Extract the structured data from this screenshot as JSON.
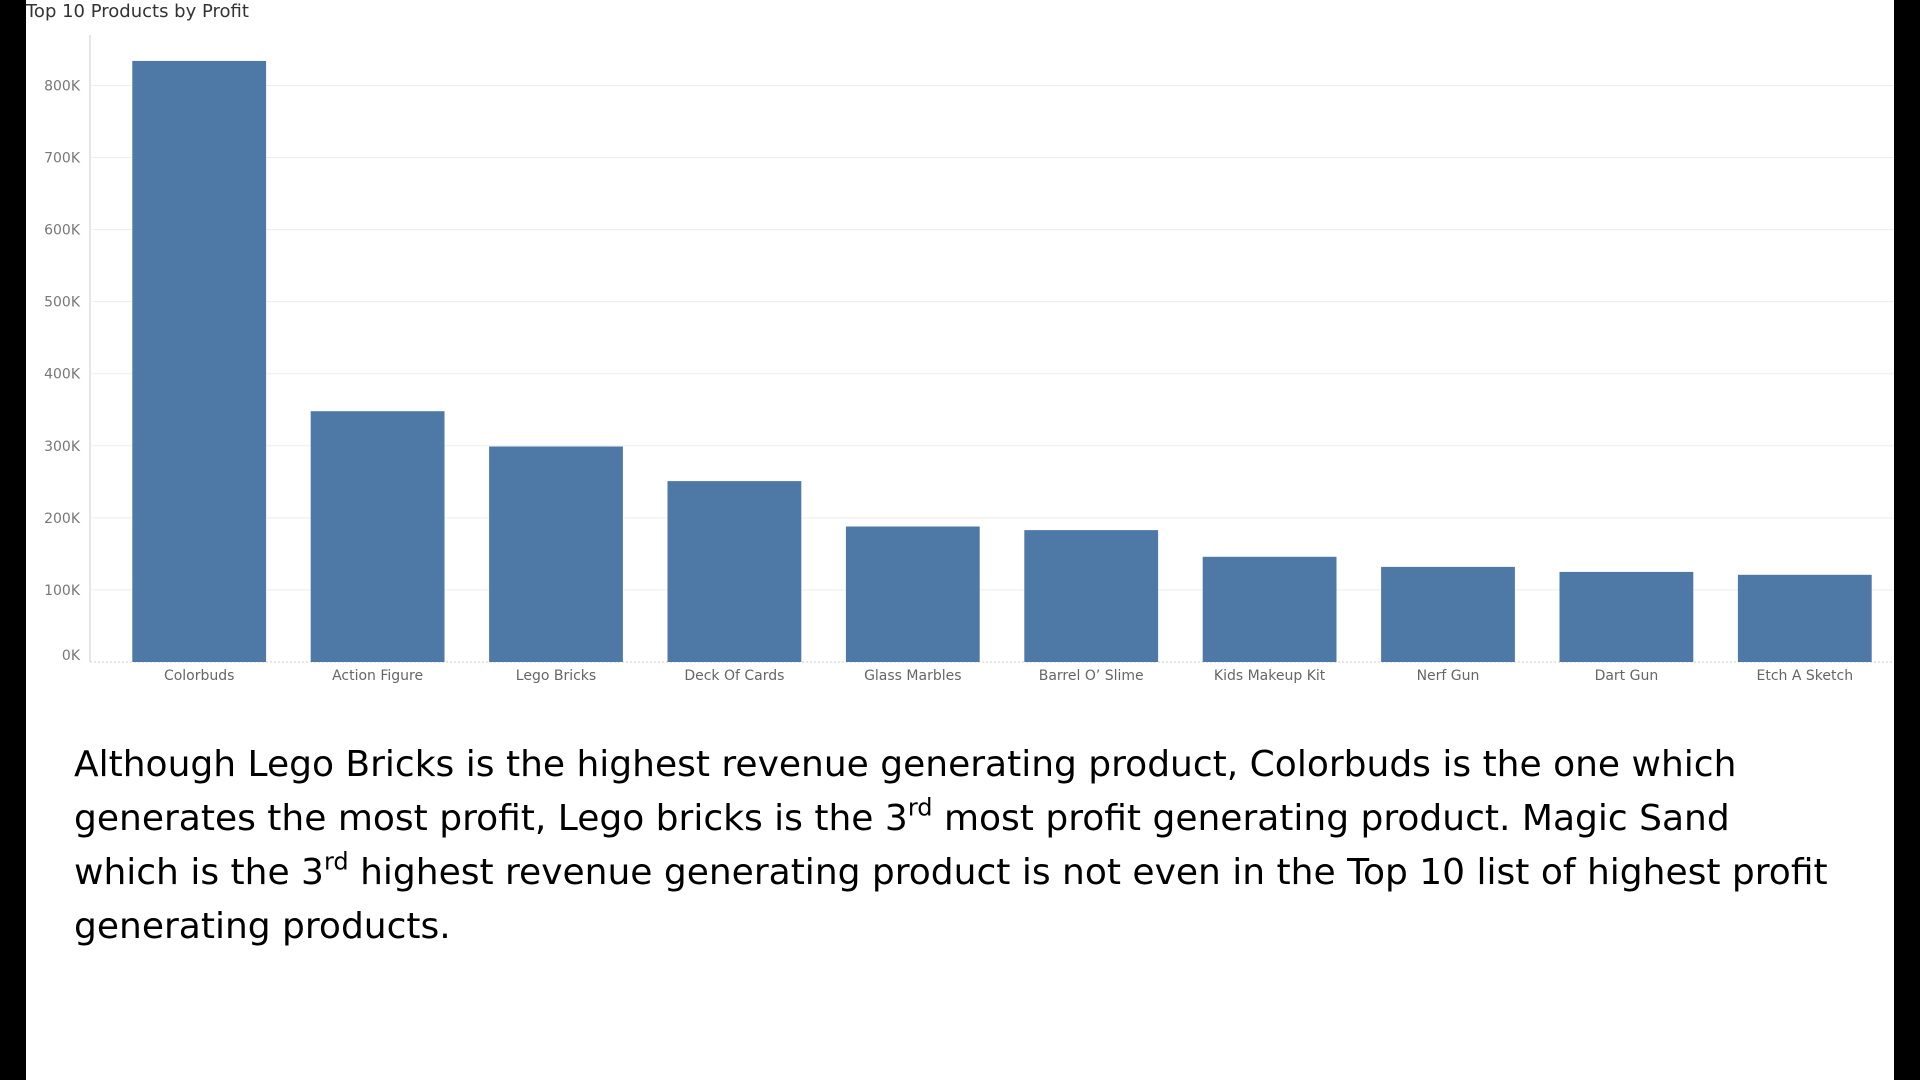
{
  "colors": {
    "bar": "#4e79a7",
    "grid": "#eeeeee",
    "axis": "#cccccc",
    "background": "#ffffff",
    "frame": "#000000"
  },
  "chart_data": {
    "type": "bar",
    "title": "Top 10 Products by Profit",
    "xlabel": "",
    "ylabel": "",
    "categories": [
      "Colorbuds",
      "Action Figure",
      "Lego Bricks",
      "Deck Of Cards",
      "Glass Marbles",
      "Barrel O’ Slime",
      "Kids Makeup Kit",
      "Nerf Gun",
      "Dart Gun",
      "Etch A Sketch"
    ],
    "values": [
      834000,
      348000,
      299000,
      251000,
      188000,
      183000,
      146000,
      132000,
      125000,
      121000
    ],
    "ylim": [
      0,
      870000
    ],
    "yticks": [
      0,
      100000,
      200000,
      300000,
      400000,
      500000,
      600000,
      700000,
      800000
    ],
    "ytick_labels": [
      "0K",
      "100K",
      "200K",
      "300K",
      "400K",
      "500K",
      "600K",
      "700K",
      "800K"
    ],
    "grid": true,
    "legend": "none"
  },
  "annotation": {
    "part1": "Although Lego Bricks is the highest revenue generating product, Colorbuds is the one which generates the most profit, Lego bricks is the 3",
    "sup1": "rd",
    "part2": " most profit generating product.  Magic Sand which is the 3",
    "sup2": "rd",
    "part3": " highest revenue generating product is not even in the Top 10 list of highest profit generating products."
  }
}
